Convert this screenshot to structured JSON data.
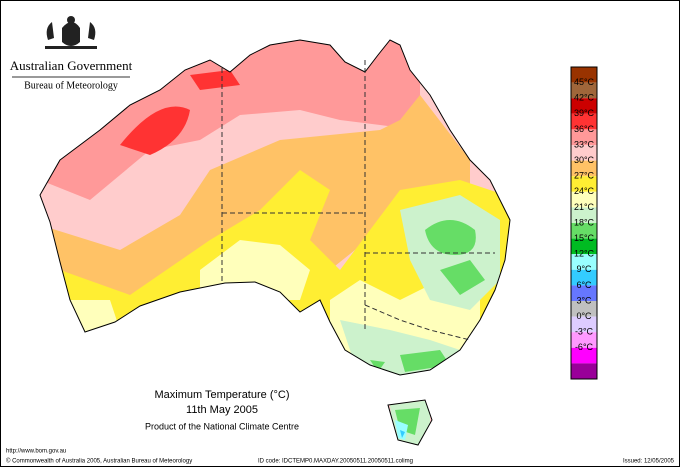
{
  "header": {
    "government": "Australian Government",
    "agency": "Bureau of Meteorology"
  },
  "map": {
    "title": "Maximum Temperature (°C)",
    "date": "11th May 2005",
    "product": "Product of the National Climate Centre"
  },
  "legend": {
    "colors": [
      "#993300",
      "#a0663a",
      "#cc0000",
      "#ff3333",
      "#ff9999",
      "#ffcccc",
      "#ffc266",
      "#ffee33",
      "#ffffbb",
      "#ccf2cc",
      "#66dd66",
      "#00bb22",
      "#99ffff",
      "#33ccff",
      "#6677ff",
      "#c0c0c0",
      "#ddccff",
      "#ff99ff",
      "#ff00ff",
      "#990099"
    ],
    "labels": [
      "45°C",
      "42°C",
      "39°C",
      "36°C",
      "33°C",
      "30°C",
      "27°C",
      "24°C",
      "21°C",
      "18°C",
      "15°C",
      "12°C",
      "9°C",
      "6°C",
      "3°C",
      "0°C",
      "-3°C",
      "-6°C"
    ]
  },
  "footer": {
    "url": "http://www.bom.gov.au",
    "copyright": "© Commonwealth of Australia 2005, Australian Bureau of Meteorology",
    "id_code": "ID code: IDCTEMP0.MAXDAY.20050511.20050511.colimg",
    "issued": "Issued: 12/05/2005"
  }
}
